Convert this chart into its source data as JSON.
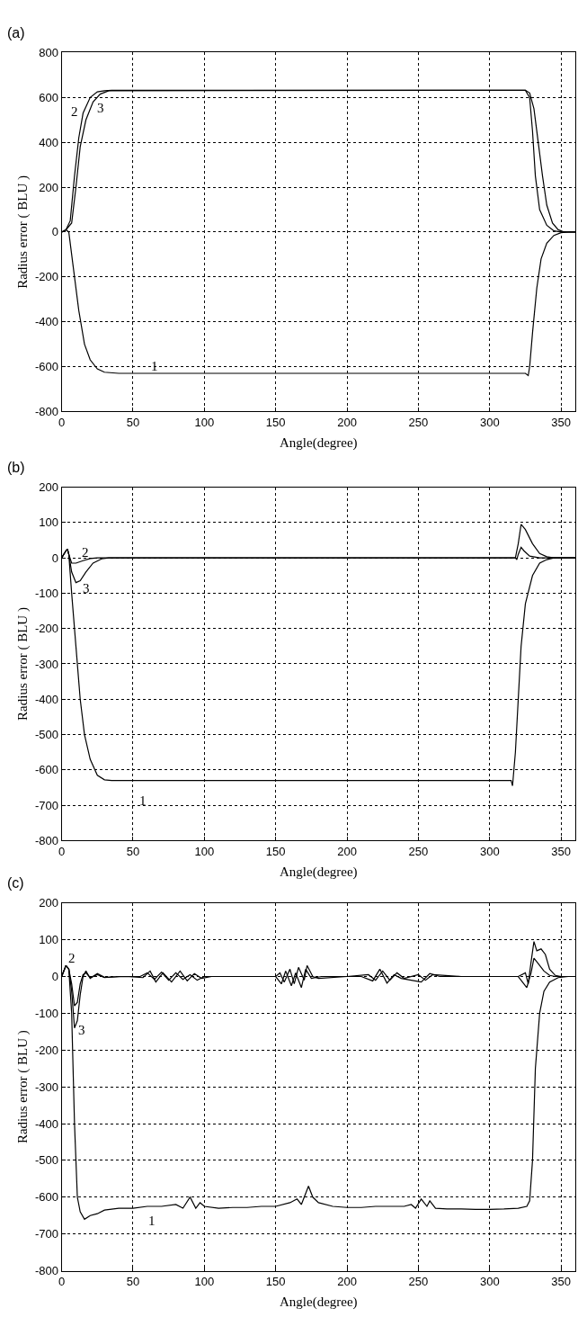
{
  "chart_data": [
    {
      "type": "line",
      "title": "(a)",
      "xlabel": "Angle(degree)",
      "ylabel": "Radius error ( BLU )",
      "xlim": [
        0,
        360
      ],
      "xticks": [
        0,
        50,
        100,
        150,
        200,
        250,
        300,
        350
      ],
      "ylim": [
        -800,
        800
      ],
      "yticks": [
        -800,
        -600,
        -400,
        -200,
        0,
        200,
        400,
        600,
        800
      ],
      "grid": true,
      "line_style": "solid",
      "series": [
        {
          "color": "#000000",
          "x": [
            0,
            3,
            5,
            8,
            12,
            16,
            20,
            25,
            30,
            40,
            325,
            327,
            328,
            330,
            333,
            336,
            340,
            345,
            350,
            355,
            360
          ],
          "values": [
            0,
            10,
            0,
            -150,
            -350,
            -500,
            -570,
            -610,
            -625,
            -630,
            -630,
            -640,
            -600,
            -450,
            -250,
            -120,
            -50,
            -15,
            -3,
            0,
            0
          ]
        },
        {
          "color": "#000000",
          "x": [
            0,
            3,
            6,
            9,
            12,
            15,
            20,
            25,
            30,
            35,
            325,
            328,
            330,
            332,
            335,
            340,
            345,
            350,
            360
          ],
          "values": [
            0,
            10,
            50,
            250,
            420,
            530,
            600,
            625,
            630,
            632,
            632,
            600,
            450,
            250,
            100,
            30,
            5,
            0,
            0
          ]
        },
        {
          "color": "#000000",
          "x": [
            0,
            3,
            7,
            10,
            13,
            17,
            22,
            27,
            33,
            325,
            328,
            331,
            334,
            337,
            340,
            344,
            348,
            352,
            360
          ],
          "values": [
            0,
            10,
            40,
            200,
            380,
            500,
            580,
            615,
            630,
            632,
            620,
            550,
            400,
            250,
            120,
            40,
            10,
            0,
            0
          ]
        }
      ],
      "annotations": [
        {
          "text": "2",
          "x": 15,
          "y": 530
        },
        {
          "text": "3",
          "x": 22,
          "y": 580
        },
        {
          "text": "1",
          "x": 40,
          "y": -630
        }
      ]
    },
    {
      "type": "line",
      "title": "(b)",
      "xlabel": "Angle(degree)",
      "ylabel": "Radius error ( BLU )",
      "xlim": [
        0,
        360
      ],
      "xticks": [
        0,
        50,
        100,
        150,
        200,
        250,
        300,
        350
      ],
      "ylim": [
        -800,
        200
      ],
      "yticks": [
        -800,
        -700,
        -600,
        -500,
        -400,
        -300,
        -200,
        -100,
        0,
        100,
        200
      ],
      "grid": true,
      "line_style": "solid",
      "series": [
        {
          "color": "#000000",
          "x": [
            0,
            3,
            4,
            5,
            7,
            10,
            13,
            16,
            20,
            25,
            30,
            35,
            315,
            316,
            318,
            320,
            322,
            325,
            330,
            335,
            340,
            345,
            360
          ],
          "values": [
            0,
            20,
            25,
            10,
            -100,
            -250,
            -400,
            -500,
            -570,
            -615,
            -628,
            -630,
            -630,
            -645,
            -550,
            -400,
            -250,
            -130,
            -50,
            -15,
            -5,
            0,
            0
          ]
        },
        {
          "color": "#000000",
          "x": [
            0,
            3,
            4,
            5,
            7,
            10,
            15,
            20,
            25,
            318,
            319,
            320,
            322,
            324,
            328,
            335,
            360
          ],
          "values": [
            0,
            20,
            25,
            10,
            -15,
            -15,
            -8,
            -2,
            0,
            0,
            -5,
            10,
            30,
            20,
            5,
            0,
            0
          ]
        },
        {
          "color": "#000000",
          "x": [
            0,
            3,
            4,
            5,
            7,
            10,
            13,
            17,
            22,
            28,
            33,
            318,
            320,
            322,
            325,
            330,
            335,
            340,
            345,
            360
          ],
          "values": [
            0,
            20,
            25,
            10,
            -40,
            -70,
            -65,
            -40,
            -15,
            -3,
            0,
            0,
            40,
            95,
            80,
            40,
            12,
            3,
            0,
            0
          ]
        }
      ],
      "annotations": [
        {
          "text": "2",
          "x": 15,
          "y": -8
        },
        {
          "text": "3",
          "x": 13,
          "y": -65
        },
        {
          "text": "1",
          "x": 35,
          "y": -630
        }
      ]
    },
    {
      "type": "line",
      "title": "(c)",
      "xlabel": "Angle(degree)",
      "ylabel": "Radius error ( BLU )",
      "xlim": [
        0,
        360
      ],
      "xticks": [
        0,
        50,
        100,
        150,
        200,
        250,
        300,
        350
      ],
      "ylim": [
        -800,
        200
      ],
      "yticks": [
        -800,
        -700,
        -600,
        -500,
        -400,
        -300,
        -200,
        -100,
        0,
        100,
        200
      ],
      "grid": true,
      "line_style": "solid",
      "series": [
        {
          "color": "#000000",
          "x": [
            0,
            3,
            5,
            7,
            9,
            11,
            13,
            16,
            20,
            25,
            30,
            40,
            50,
            60,
            70,
            80,
            85,
            90,
            94,
            97,
            100,
            110,
            120,
            130,
            140,
            150,
            160,
            165,
            168,
            173,
            176,
            180,
            190,
            200,
            210,
            220,
            230,
            240,
            245,
            248,
            252,
            256,
            258,
            262,
            270,
            280,
            290,
            300,
            310,
            320,
            326,
            328,
            330,
            332,
            335,
            338,
            342,
            348,
            355,
            360
          ],
          "values": [
            0,
            30,
            20,
            -100,
            -400,
            -600,
            -640,
            -660,
            -650,
            -645,
            -635,
            -630,
            -630,
            -625,
            -625,
            -620,
            -630,
            -600,
            -630,
            -615,
            -625,
            -630,
            -628,
            -628,
            -625,
            -625,
            -615,
            -605,
            -620,
            -570,
            -600,
            -615,
            -625,
            -628,
            -628,
            -625,
            -625,
            -625,
            -620,
            -630,
            -605,
            -625,
            -610,
            -630,
            -632,
            -632,
            -633,
            -633,
            -632,
            -630,
            -625,
            -610,
            -500,
            -250,
            -100,
            -40,
            -15,
            -3,
            0,
            0
          ]
        },
        {
          "color": "#000000",
          "x": [
            0,
            3,
            5,
            7,
            9,
            11,
            13,
            15,
            17,
            20,
            25,
            30,
            40,
            55,
            60,
            65,
            70,
            75,
            80,
            85,
            90,
            95,
            100,
            120,
            150,
            153,
            156,
            160,
            163,
            166,
            170,
            172,
            176,
            180,
            200,
            215,
            220,
            225,
            230,
            235,
            240,
            250,
            255,
            260,
            280,
            320,
            325,
            327,
            329,
            331,
            333,
            336,
            339,
            342,
            346,
            350,
            360
          ],
          "values": [
            0,
            30,
            20,
            -20,
            -80,
            -70,
            -20,
            5,
            10,
            -3,
            5,
            -3,
            0,
            0,
            10,
            -8,
            12,
            -10,
            10,
            -8,
            5,
            -10,
            0,
            0,
            0,
            10,
            -15,
            20,
            -20,
            25,
            -10,
            30,
            0,
            -5,
            0,
            5,
            -10,
            15,
            -10,
            10,
            -5,
            5,
            -10,
            5,
            0,
            0,
            10,
            -20,
            40,
            95,
            70,
            75,
            60,
            20,
            3,
            0,
            0
          ]
        },
        {
          "color": "#000000",
          "x": [
            0,
            3,
            5,
            7,
            9,
            11,
            13,
            15,
            17,
            20,
            25,
            30,
            45,
            57,
            62,
            66,
            71,
            77,
            83,
            88,
            93,
            98,
            105,
            150,
            154,
            157,
            161,
            164,
            168,
            171,
            175,
            182,
            210,
            218,
            223,
            228,
            233,
            238,
            252,
            258,
            265,
            320,
            326,
            329,
            331,
            334,
            338,
            342,
            346,
            360
          ],
          "values": [
            0,
            30,
            20,
            -40,
            -140,
            -120,
            -50,
            0,
            15,
            -5,
            8,
            -2,
            0,
            -3,
            15,
            -15,
            10,
            -15,
            15,
            -12,
            8,
            -5,
            0,
            0,
            -20,
            15,
            -25,
            10,
            -30,
            20,
            -5,
            0,
            0,
            -12,
            20,
            -18,
            5,
            -5,
            -15,
            8,
            0,
            0,
            -30,
            10,
            50,
            35,
            15,
            3,
            0,
            0
          ]
        }
      ],
      "annotations": [
        {
          "text": "2",
          "x": 3,
          "y": 30
        },
        {
          "text": "3",
          "x": 9,
          "y": -140
        },
        {
          "text": "1",
          "x": 60,
          "y": -625
        }
      ]
    }
  ]
}
